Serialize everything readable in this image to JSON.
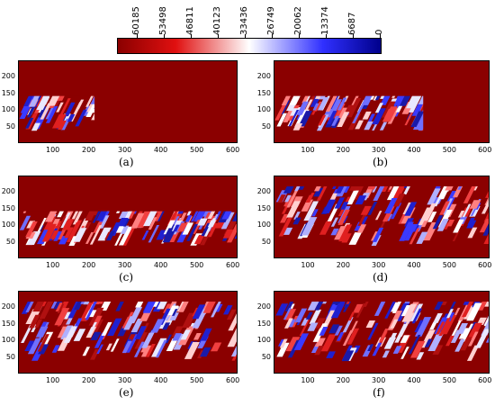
{
  "colorbar": {
    "labels": [
      "60185",
      "53498",
      "46811",
      "40123",
      "33436",
      "26749",
      "20062",
      "13374",
      "6687",
      "0"
    ],
    "colors": [
      "#8b0000",
      "#ffffff",
      "#00008b"
    ]
  },
  "panels": [
    {
      "id": "a",
      "caption": "(a)",
      "yticks": [
        "200",
        "150",
        "100",
        "50"
      ],
      "xticks": [
        "100",
        "200",
        "300",
        "400",
        "500",
        "600"
      ],
      "fill_extent": [
        0,
        210
      ],
      "top_layer": false
    },
    {
      "id": "b",
      "caption": "(b)",
      "yticks": [
        "200",
        "150",
        "100",
        "50"
      ],
      "xticks": [
        "100",
        "200",
        "300",
        "400",
        "500",
        "600"
      ],
      "fill_extent": [
        0,
        420
      ],
      "top_layer": false
    },
    {
      "id": "c",
      "caption": "(c)",
      "yticks": [
        "200",
        "150",
        "100",
        "50"
      ],
      "xticks": [
        "100",
        "200",
        "300",
        "400",
        "500",
        "600"
      ],
      "fill_extent": [
        0,
        600
      ],
      "top_layer": false
    },
    {
      "id": "d",
      "caption": "(d)",
      "yticks": [
        "200",
        "150",
        "100",
        "50"
      ],
      "xticks": [
        "100",
        "200",
        "300",
        "400",
        "500",
        "600"
      ],
      "fill_extent": [
        0,
        600
      ],
      "top_layer": true
    },
    {
      "id": "e",
      "caption": "(e)",
      "yticks": [
        "200",
        "150",
        "100",
        "50"
      ],
      "xticks": [
        "100",
        "200",
        "300",
        "400",
        "500",
        "600"
      ],
      "fill_extent": [
        0,
        600
      ],
      "top_layer": true
    },
    {
      "id": "f",
      "caption": "(f)",
      "yticks": [
        "200",
        "150",
        "100",
        "50"
      ],
      "xticks": [
        "100",
        "200",
        "300",
        "400",
        "500",
        "600"
      ],
      "fill_extent": [
        0,
        600
      ],
      "top_layer": true
    }
  ]
}
